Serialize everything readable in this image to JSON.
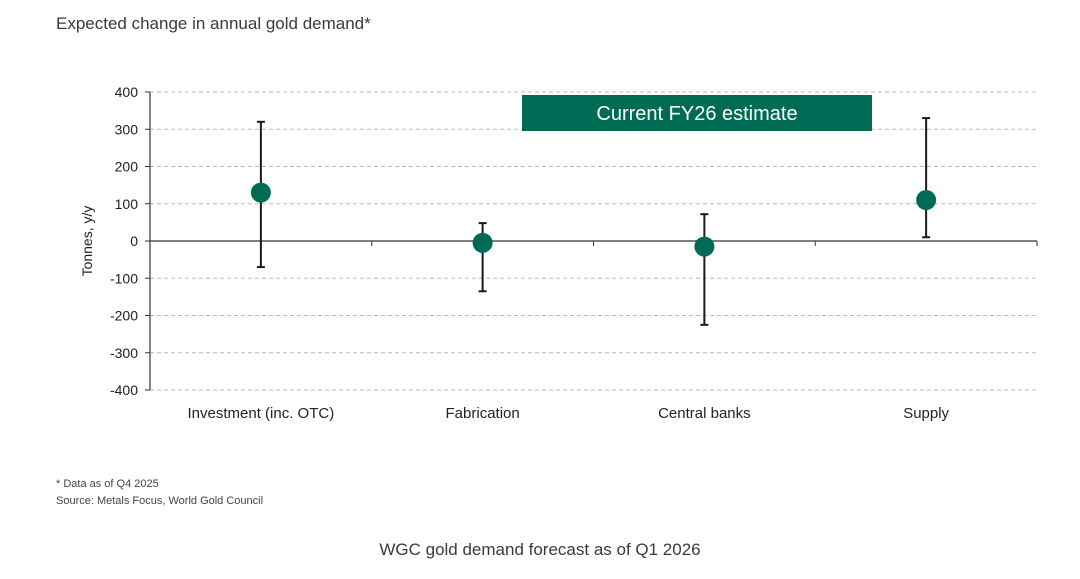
{
  "chart_data": {
    "type": "scatter",
    "title": "Expected change in annual gold demand*",
    "ylabel": "Tonnes, y/y",
    "ylim": [
      -400,
      400
    ],
    "yticks": [
      400,
      300,
      200,
      100,
      0,
      -100,
      -200,
      -300,
      -400
    ],
    "grid": true,
    "categories": [
      "Investment (inc. OTC)",
      "Fabrication",
      "Central banks",
      "Supply"
    ],
    "series": [
      {
        "name": "Current FY26 estimate",
        "values": [
          130,
          -5,
          -15,
          110
        ],
        "low": [
          -70,
          -135,
          -225,
          10
        ],
        "high": [
          320,
          48,
          72,
          330
        ]
      }
    ],
    "legend_position": "top-right",
    "colors": {
      "marker": "#006b55",
      "legend_bg": "#006b55",
      "legend_text": "#ffffff",
      "error_bar": "#1a1a1a",
      "grid": "#bdbdbd",
      "axis": "#333333"
    }
  },
  "footnote": "* Data as of Q4 2025",
  "source": "Source: Metals Focus, World Gold Council",
  "caption": "WGC gold demand forecast as of Q1 2026"
}
